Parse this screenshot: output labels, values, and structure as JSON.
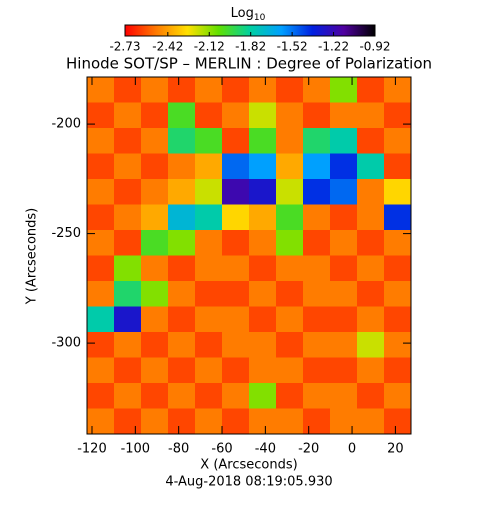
{
  "chart_data": {
    "type": "heatmap",
    "title": "Hinode SOT/SP – MERLIN : Degree of Polarization",
    "colorbar_label": {
      "text": "Log",
      "subscript": "10"
    },
    "xlabel": "X (Arcseconds)",
    "ylabel": "Y (Arcseconds)",
    "footer": "4-Aug-2018 08:19:05.930",
    "xlim": [
      -122.3,
      27.2
    ],
    "ylim": [
      -341.5,
      -178.5
    ],
    "xticks": [
      -120,
      -100,
      -80,
      -60,
      -40,
      -20,
      0,
      20
    ],
    "yticks": [
      -200,
      -250,
      -300
    ],
    "clim": [
      -2.73,
      -0.92
    ],
    "cticks": [
      -2.73,
      -2.42,
      -2.12,
      -1.82,
      -1.52,
      -1.22,
      -0.92
    ],
    "colormap": [
      "#ff0000",
      "#ff7a00",
      "#ffe000",
      "#60e000",
      "#00d0a0",
      "#00a0ff",
      "#0020e0",
      "#5000a0",
      "#000000"
    ],
    "z": [
      [
        -2.5,
        -2.6,
        -2.5,
        -2.6,
        -2.5,
        -2.6,
        -2.5,
        -2.6,
        -2.5,
        -2.1,
        -2.6,
        -2.5
      ],
      [
        -2.6,
        -2.5,
        -2.6,
        -2.0,
        -2.6,
        -2.5,
        -2.2,
        -2.5,
        -2.6,
        -2.5,
        -2.5,
        -2.6
      ],
      [
        -2.5,
        -2.6,
        -2.5,
        -1.9,
        -2.0,
        -2.6,
        -2.0,
        -2.5,
        -1.9,
        -1.8,
        -2.6,
        -2.5
      ],
      [
        -2.6,
        -2.5,
        -2.6,
        -2.5,
        -2.4,
        -1.5,
        -1.6,
        -2.4,
        -1.6,
        -1.4,
        -1.8,
        -2.6
      ],
      [
        -2.5,
        -2.6,
        -2.5,
        -2.4,
        -2.2,
        -1.2,
        -1.3,
        -2.2,
        -1.4,
        -1.5,
        -2.5,
        -2.3
      ],
      [
        -2.6,
        -2.5,
        -2.4,
        -1.7,
        -1.8,
        -2.3,
        -2.4,
        -2.0,
        -2.5,
        -2.6,
        -2.5,
        -1.4
      ],
      [
        -2.5,
        -2.6,
        -2.0,
        -2.1,
        -2.5,
        -2.6,
        -2.5,
        -2.1,
        -2.6,
        -2.5,
        -2.6,
        -2.5
      ],
      [
        -2.6,
        -2.1,
        -2.5,
        -2.6,
        -2.5,
        -2.5,
        -2.6,
        -2.5,
        -2.5,
        -2.6,
        -2.5,
        -2.6
      ],
      [
        -2.5,
        -1.9,
        -2.1,
        -2.5,
        -2.6,
        -2.6,
        -2.5,
        -2.6,
        -2.5,
        -2.5,
        -2.6,
        -2.5
      ],
      [
        -1.8,
        -1.3,
        -2.5,
        -2.6,
        -2.5,
        -2.5,
        -2.6,
        -2.5,
        -2.6,
        -2.6,
        -2.5,
        -2.6
      ],
      [
        -2.6,
        -2.5,
        -2.6,
        -2.5,
        -2.6,
        -2.5,
        -2.5,
        -2.6,
        -2.5,
        -2.5,
        -2.2,
        -2.5
      ],
      [
        -2.5,
        -2.6,
        -2.5,
        -2.6,
        -2.5,
        -2.6,
        -2.5,
        -2.5,
        -2.6,
        -2.6,
        -2.5,
        -2.6
      ],
      [
        -2.6,
        -2.5,
        -2.6,
        -2.5,
        -2.6,
        -2.5,
        -2.1,
        -2.6,
        -2.5,
        -2.5,
        -2.6,
        -2.5
      ],
      [
        -2.5,
        -2.6,
        -2.5,
        -2.6,
        -2.5,
        -2.6,
        -2.5,
        -2.5,
        -2.6,
        -2.5,
        -2.5,
        -2.6
      ]
    ]
  }
}
